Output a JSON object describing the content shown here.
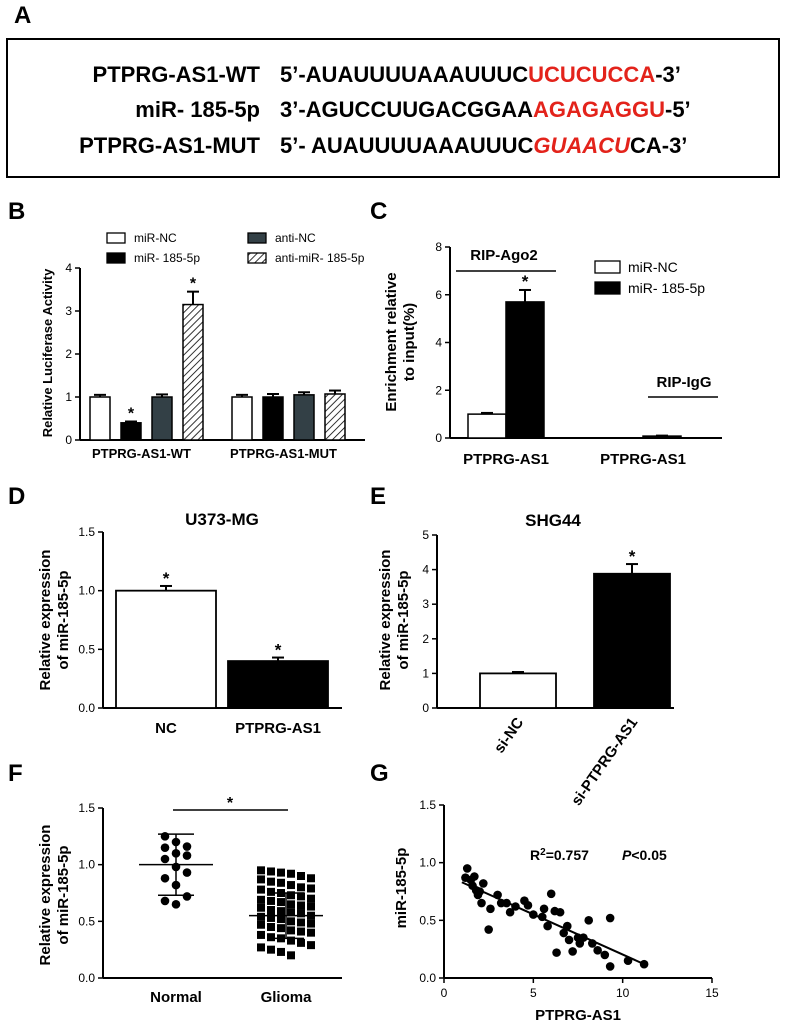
{
  "panels": {
    "A": "A",
    "B": "B",
    "C": "C",
    "D": "D",
    "E": "E",
    "F": "F",
    "G": "G"
  },
  "sequences": [
    {
      "name": "PTPRG-AS1-WT",
      "prefix": "5’-AUAUUUUAAAUUUC",
      "highlight": "UCUCUCCA",
      "highlight_style": "red",
      "after": "",
      "suffix": "-3’"
    },
    {
      "name": "miR- 185-5p",
      "prefix": "3’-AGUCCUUGACGGAA",
      "highlight": "AGAGAGGU",
      "highlight_style": "red",
      "after": "",
      "suffix": "-5’"
    },
    {
      "name": "PTPRG-AS1-MUT",
      "prefix": "5’- AUAUUUUAAAUUUC",
      "highlight": "GUAACU",
      "highlight_style": "redi",
      "after": "CA",
      "suffix": "-3’"
    }
  ],
  "colors": {
    "black": "#000000",
    "white": "#ffffff",
    "darkgray": "#334046",
    "red": "#e3231b"
  },
  "chart_data": [
    {
      "panel": "B",
      "type": "bar",
      "ylabel": "Relative Luciferase Activity",
      "ylim": [
        0,
        4
      ],
      "yticks": [
        0,
        1,
        2,
        3,
        4
      ],
      "categories": [
        "PTPRG-AS1-WT",
        "PTPRG-AS1-MUT"
      ],
      "legend": [
        "miR-NC",
        "miR- 185-5p",
        "anti-NC",
        "anti-miR- 185-5p"
      ],
      "series": [
        {
          "name": "miR-NC",
          "fill": "white",
          "values": [
            1.0,
            1.0
          ],
          "errors": [
            0.05,
            0.05
          ],
          "star": [
            false,
            false
          ]
        },
        {
          "name": "miR- 185-5p",
          "fill": "black",
          "values": [
            0.4,
            1.0
          ],
          "errors": [
            0.03,
            0.07
          ],
          "star": [
            true,
            false
          ]
        },
        {
          "name": "anti-NC",
          "fill": "darkgray",
          "values": [
            1.0,
            1.05
          ],
          "errors": [
            0.06,
            0.06
          ],
          "star": [
            false,
            false
          ]
        },
        {
          "name": "anti-miR- 185-5p",
          "fill": "hatch",
          "values": [
            3.15,
            1.07
          ],
          "errors": [
            0.3,
            0.08
          ],
          "star": [
            true,
            false
          ]
        }
      ],
      "star_label": "*"
    },
    {
      "panel": "C",
      "type": "bar",
      "ylabel": "Enrichment relative to input(%)",
      "ylabel_lines": [
        "Enrichment relative",
        "to input(%)"
      ],
      "ylim": [
        0,
        8
      ],
      "yticks": [
        0,
        2,
        4,
        6,
        8
      ],
      "categories": [
        "PTPRG-AS1",
        "PTPRG-AS1"
      ],
      "group_labels": [
        "RIP-Ago2",
        "RIP-IgG"
      ],
      "legend": [
        "miR-NC",
        "miR- 185-5p"
      ],
      "series": [
        {
          "name": "miR-NC",
          "fill": "white",
          "values": [
            1.0,
            0.0
          ],
          "errors": [
            0.05,
            0
          ],
          "star": [
            false,
            false
          ]
        },
        {
          "name": "miR- 185-5p",
          "fill": "black",
          "values": [
            5.7,
            0.08
          ],
          "errors": [
            0.5,
            0.02
          ],
          "star": [
            true,
            false
          ]
        }
      ],
      "star_label": "*"
    },
    {
      "panel": "D",
      "type": "bar",
      "title": "U373-MG",
      "ylabel_lines": [
        "Relative expression",
        "of miR-185-5p"
      ],
      "ylim": [
        0,
        1.5
      ],
      "yticks": [
        "0.0",
        "0.5",
        "1.0",
        "1.5"
      ],
      "categories": [
        "NC",
        "PTPRG-AS1"
      ],
      "values": [
        1.0,
        0.4
      ],
      "errors": [
        0.04,
        0.03
      ],
      "fills": [
        "white",
        "black"
      ],
      "star": [
        true,
        true
      ],
      "star_label": "*"
    },
    {
      "panel": "E",
      "type": "bar",
      "title": "SHG44",
      "ylabel_lines": [
        "Relative expression",
        "of miR-185-5p"
      ],
      "ylim": [
        0,
        5
      ],
      "yticks": [
        0,
        1,
        2,
        3,
        4,
        5
      ],
      "categories": [
        "si-NC",
        "si-PTPRG-AS1"
      ],
      "values": [
        1.0,
        3.88
      ],
      "errors": [
        0.04,
        0.28
      ],
      "fills": [
        "white",
        "black"
      ],
      "star": [
        false,
        true
      ],
      "star_label": "*"
    },
    {
      "panel": "F",
      "type": "scatter",
      "ylabel_lines": [
        "Relative expression",
        "of miR-185-5p"
      ],
      "ylim": [
        0,
        1.5
      ],
      "yticks": [
        "0.0",
        "0.5",
        "1.0",
        "1.5"
      ],
      "categories": [
        "Normal",
        "Glioma"
      ],
      "groups": [
        {
          "name": "Normal",
          "mean": 1.0,
          "sd": 0.27,
          "points": [
            1.25,
            1.2,
            1.16,
            1.15,
            1.1,
            1.08,
            1.05,
            0.98,
            0.93,
            0.88,
            0.82,
            0.72,
            0.68,
            0.65
          ]
        },
        {
          "name": "Glioma",
          "mean": 0.55,
          "sd": 0.2,
          "points": [
            0.95,
            0.94,
            0.93,
            0.92,
            0.9,
            0.88,
            0.87,
            0.85,
            0.84,
            0.82,
            0.8,
            0.79,
            0.78,
            0.76,
            0.75,
            0.73,
            0.72,
            0.7,
            0.69,
            0.68,
            0.67,
            0.65,
            0.64,
            0.63,
            0.62,
            0.6,
            0.59,
            0.58,
            0.57,
            0.55,
            0.54,
            0.53,
            0.52,
            0.5,
            0.49,
            0.48,
            0.47,
            0.45,
            0.44,
            0.42,
            0.41,
            0.4,
            0.38,
            0.36,
            0.35,
            0.33,
            0.31,
            0.29,
            0.27,
            0.25,
            0.23,
            0.2
          ]
        }
      ],
      "star_label": "*"
    },
    {
      "panel": "G",
      "type": "scatter",
      "xlabel": "PTPRG-AS1",
      "ylabel": "miR-185-5p",
      "xlim": [
        0,
        15
      ],
      "ylim": [
        0,
        1.5
      ],
      "xticks": [
        0,
        5,
        10,
        15
      ],
      "yticks": [
        "0.0",
        "0.5",
        "1.0",
        "1.5"
      ],
      "r2_label": "R",
      "r2_sup": "2",
      "r2_value": "=0.757",
      "p_label": "P",
      "p_value": "<0.05",
      "fit": [
        [
          1.0,
          0.83
        ],
        [
          11.2,
          0.12
        ]
      ],
      "points": [
        [
          1.2,
          0.87
        ],
        [
          1.3,
          0.95
        ],
        [
          1.5,
          0.85
        ],
        [
          1.6,
          0.8
        ],
        [
          1.7,
          0.88
        ],
        [
          1.8,
          0.76
        ],
        [
          1.9,
          0.72
        ],
        [
          2.0,
          0.75
        ],
        [
          2.1,
          0.65
        ],
        [
          2.2,
          0.82
        ],
        [
          2.5,
          0.42
        ],
        [
          2.6,
          0.6
        ],
        [
          3.0,
          0.72
        ],
        [
          3.2,
          0.65
        ],
        [
          3.5,
          0.65
        ],
        [
          3.7,
          0.57
        ],
        [
          4.0,
          0.62
        ],
        [
          4.5,
          0.67
        ],
        [
          4.7,
          0.63
        ],
        [
          5.0,
          0.55
        ],
        [
          5.5,
          0.53
        ],
        [
          5.6,
          0.6
        ],
        [
          5.8,
          0.45
        ],
        [
          6.0,
          0.73
        ],
        [
          6.2,
          0.58
        ],
        [
          6.3,
          0.22
        ],
        [
          6.5,
          0.57
        ],
        [
          6.7,
          0.39
        ],
        [
          6.9,
          0.45
        ],
        [
          7.0,
          0.33
        ],
        [
          7.2,
          0.23
        ],
        [
          7.5,
          0.35
        ],
        [
          7.6,
          0.3
        ],
        [
          7.8,
          0.35
        ],
        [
          8.1,
          0.5
        ],
        [
          8.3,
          0.3
        ],
        [
          8.6,
          0.24
        ],
        [
          9.0,
          0.2
        ],
        [
          9.3,
          0.1
        ],
        [
          9.3,
          0.52
        ],
        [
          10.3,
          0.15
        ],
        [
          11.2,
          0.12
        ]
      ]
    }
  ]
}
